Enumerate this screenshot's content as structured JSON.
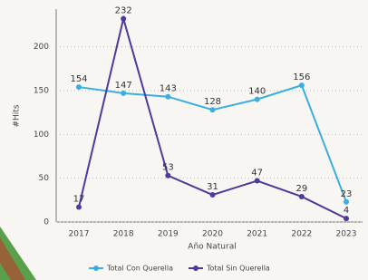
{
  "chart_data": {
    "type": "line",
    "categories": [
      "2017",
      "2018",
      "2019",
      "2020",
      "2021",
      "2022",
      "2023"
    ],
    "series": [
      {
        "name": "Total Con Querella",
        "color": "#3aaee0",
        "values": [
          154,
          147,
          143,
          128,
          140,
          156,
          23
        ]
      },
      {
        "name": "Total Sin Querella",
        "color": "#4b3b9c",
        "values": [
          17,
          232,
          53,
          31,
          47,
          29,
          4
        ]
      }
    ],
    "ylim": [
      0,
      243
    ],
    "yticks": [
      0,
      50,
      100,
      150,
      200
    ],
    "ylabel": "#Hits",
    "xlabel": "Año Natural",
    "grid": true,
    "legend": "bottom"
  }
}
